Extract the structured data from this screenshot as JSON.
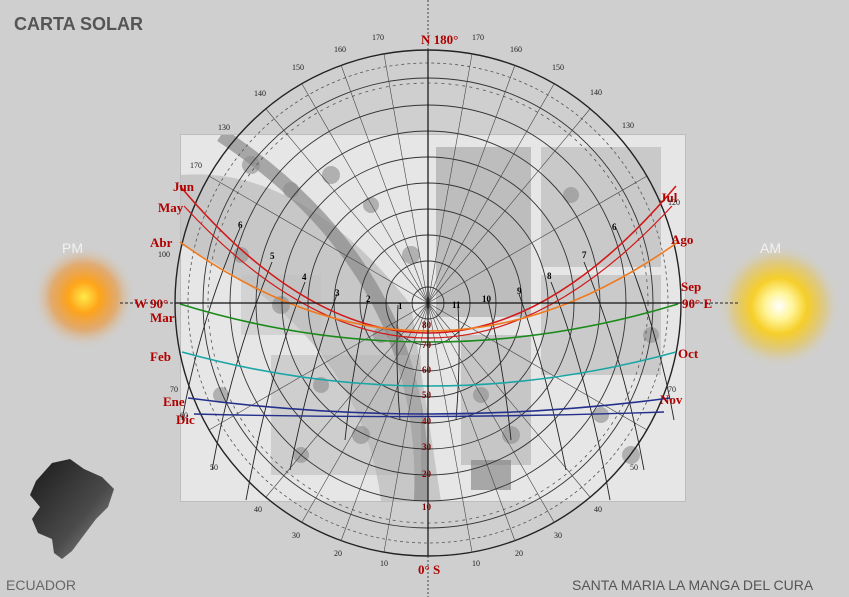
{
  "title": "CARTA SOLAR",
  "labels": {
    "pm": "PM",
    "am": "AM",
    "country": "ECUADOR",
    "place": "SANTA MARIA LA MANGA DEL CURA"
  },
  "directions": {
    "north": "N 180°",
    "south": "0° S",
    "west": "W 90°",
    "east": "90° E"
  },
  "months_left": [
    "Jun",
    "May",
    "Abr",
    "Mar",
    "Feb",
    "Ene",
    "Dic"
  ],
  "months_right": [
    "Jul",
    "Ago",
    "Sep",
    "Oct",
    "Nov"
  ],
  "hours": [
    "1",
    "2",
    "3",
    "4",
    "5",
    "6",
    "7",
    "8",
    "9",
    "10",
    "11"
  ],
  "altitude_labels": [
    "80",
    "70",
    "60",
    "50",
    "40",
    "30",
    "20",
    "10"
  ],
  "azimuth_labels": [
    "170",
    "160",
    "150",
    "140",
    "130",
    "120",
    "110",
    "100",
    "90",
    "80",
    "70",
    "60",
    "50",
    "40",
    "30",
    "20",
    "10"
  ],
  "colors": {
    "background": "#cfcfcf",
    "june_curve": "#d21818",
    "april_curve": "#f07a1e",
    "march_curve": "#1a8a1a",
    "february_curve": "#1aa6a6",
    "january_curve": "#24308c",
    "label_red": "#b00000"
  }
}
